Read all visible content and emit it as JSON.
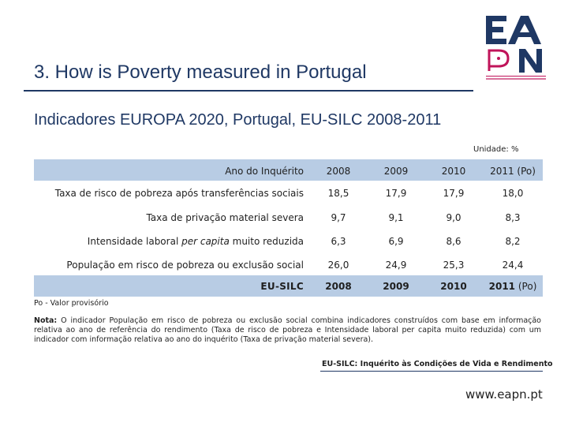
{
  "title": "3. How is Poverty measured in Portugal",
  "subtitle": "Indicadores EUROPA 2020, Portugal, EU-SILC 2008-2011",
  "unit": "Unidade: %",
  "logo": {
    "letters": [
      "E",
      "A",
      "P",
      "N"
    ],
    "colors": {
      "navy": "#1f3864",
      "magenta": "#c0145a"
    }
  },
  "table": {
    "header_label": "Ano do Inquérito",
    "years": [
      "2008",
      "2009",
      "2010",
      "2011 (Po)"
    ],
    "rows": [
      {
        "label": "Taxa de risco de pobreza após transferências sociais",
        "values": [
          "18,5",
          "17,9",
          "17,9",
          "18,0"
        ]
      },
      {
        "label": "Taxa de privação material severa",
        "values": [
          "9,7",
          "9,1",
          "9,0",
          "8,3"
        ]
      },
      {
        "label_pre": "Intensidade laboral ",
        "label_em": "per capita",
        "label_post": " muito reduzida",
        "values": [
          "6,3",
          "6,9",
          "8,6",
          "8,2"
        ]
      },
      {
        "label": "População em risco de pobreza ou exclusão social",
        "values": [
          "26,0",
          "24,9",
          "25,3",
          "24,4"
        ]
      }
    ],
    "footer_label": "EU-SILC",
    "footer_years": [
      "2008",
      "2009",
      "2010"
    ],
    "footer_last_year": "2011",
    "footer_last_suffix": "(Po)",
    "band_color": "#b8cce4"
  },
  "provisional_note": "Po - Valor provisório",
  "note_label": "Nota:",
  "note_text": "O indicador População em risco de pobreza ou exclusão social combina indicadores construídos com base em informação relativa ao ano de referência do rendimento (Taxa de risco de pobreza e Intensidade laboral per capita muito reduzida) com um indicador com informação relativa ao ano do inquérito (Taxa de privação material severa).",
  "source": "EU-SILC: Inquérito às Condições de Vida e Rendimento",
  "website": "www.eapn.pt"
}
